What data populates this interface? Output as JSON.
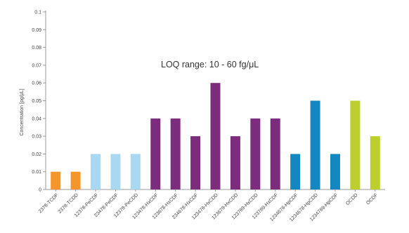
{
  "chart_data": {
    "type": "bar",
    "ylabel": "Concentration [pg/μL]",
    "ylim": [
      0,
      0.1
    ],
    "yticks": [
      0,
      0.01,
      0.02,
      0.03,
      0.04,
      0.05,
      0.06,
      0.07,
      0.08,
      0.09,
      0.1
    ],
    "ytick_labels": [
      "0",
      "0.01",
      "0.02",
      "0.03",
      "0.04",
      "0.05",
      "0.06",
      "0.07",
      "0.08",
      "0.09",
      "0.1"
    ],
    "annotation": "LOQ range: 10 - 60 fg/μL",
    "grid": false,
    "categories": [
      "2378-TCDF",
      "2378-TCDD",
      "12378-PeCDF",
      "23478-PeCDF",
      "12378-PeCDD",
      "123478-HxCDF",
      "123678-HxCDF",
      "234678-HxCDF",
      "123478-HxCDD",
      "123678-HxCDD",
      "123789-HxCDD",
      "123789-HxCDF",
      "1234678-HpCDF",
      "1234678-HpCDD",
      "1234789-HpCDF",
      "OCDD",
      "OCDF"
    ],
    "values": [
      0.01,
      0.01,
      0.02,
      0.02,
      0.02,
      0.04,
      0.04,
      0.03,
      0.06,
      0.03,
      0.04,
      0.04,
      0.02,
      0.05,
      0.02,
      0.05,
      0.03
    ],
    "colors": [
      "#f5962a",
      "#f5962a",
      "#a9d8f2",
      "#a9d8f2",
      "#a9d8f2",
      "#7b2c7d",
      "#7b2c7d",
      "#7b2c7d",
      "#7b2c7d",
      "#7b2c7d",
      "#7b2c7d",
      "#7b2c7d",
      "#1387c0",
      "#1387c0",
      "#1387c0",
      "#bccf2d",
      "#bccf2d"
    ],
    "axis_color": "#9a9a9a"
  }
}
